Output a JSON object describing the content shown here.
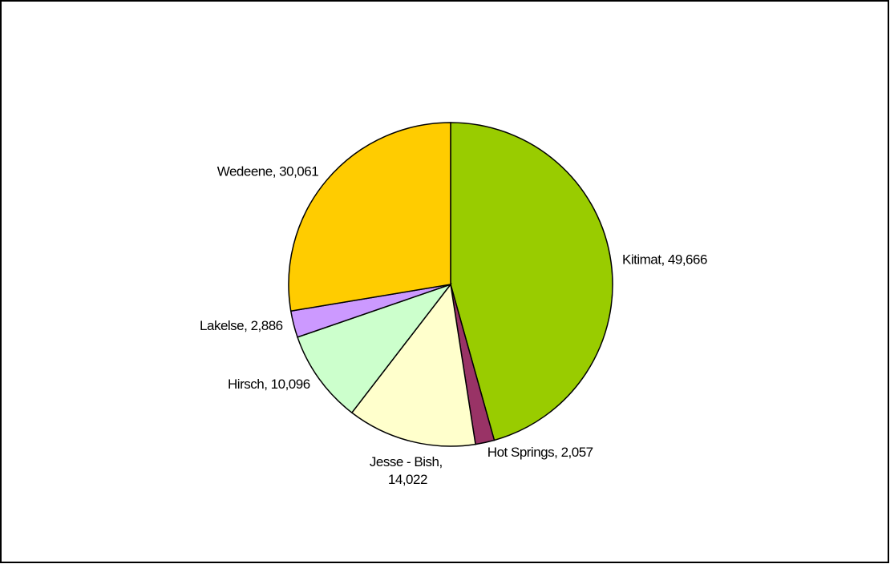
{
  "chart_data": {
    "type": "pie",
    "categories": [
      "Kitimat",
      "Hot Springs",
      "Jesse - Bish",
      "Hirsch",
      "Lakelse",
      "Wedeene"
    ],
    "values": [
      49666,
      2057,
      14022,
      10096,
      2886,
      30061
    ],
    "value_labels": [
      "49,666",
      "2,057",
      "14,022",
      "10,096",
      "2,886",
      "30,061"
    ],
    "label_separator": ", ",
    "colors": [
      "#99cc00",
      "#993366",
      "#ffffcc",
      "#ccffcc",
      "#cc99ff",
      "#ffcc00"
    ]
  }
}
